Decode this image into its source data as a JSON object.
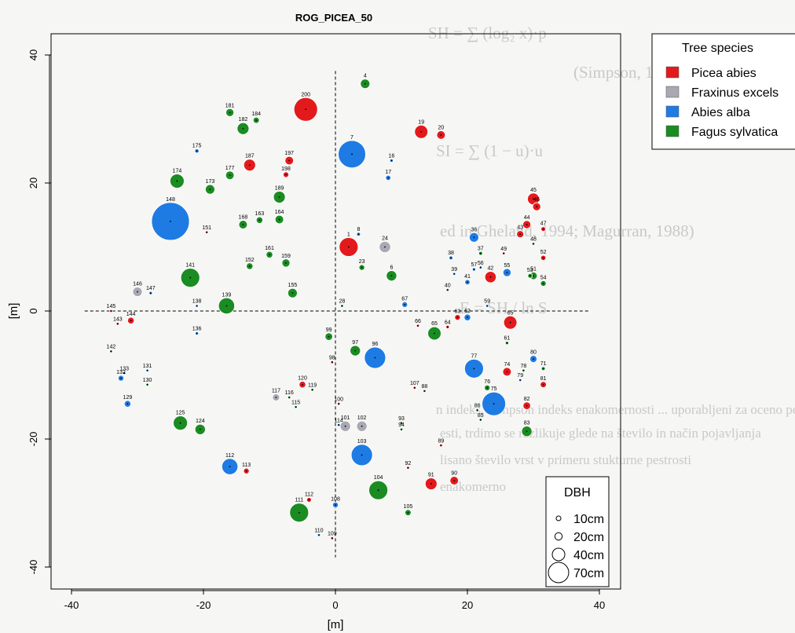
{
  "background_text": [
    "SH = ∑ (log₂ x)·p",
    "(Simpson, 1949)",
    "SI = ∑ (1 − u)·u",
    "ed in Gheland, 1994; Magurran, 1988)",
    "E = SH / ln S",
    "n indeks, Simpson indeks enakomernosti ... uporabljeni za oceno pestrosti",
    "esti, trdimo se razlikuje glede na število in način pojavljanja",
    "lisano število vrst v primeru stukturne pestrosti",
    "enakomerno"
  ],
  "chart_data": {
    "type": "scatter",
    "title": "ROG_PICEA_50",
    "xlabel": "[m]",
    "ylabel": "[m]",
    "xlim": [
      -40,
      44
    ],
    "ylim": [
      -43,
      43
    ],
    "xticks": [
      -40,
      -20,
      0,
      20,
      40
    ],
    "yticks": [
      -40,
      -20,
      0,
      20,
      40
    ],
    "grid": false,
    "reference_lines": "dashed axes at x=0 and y=0",
    "legend_position": "top-right",
    "legend_title": "Tree species",
    "species": [
      {
        "name": "Picea abies",
        "color": "#e31a1c"
      },
      {
        "name": "Fraxinus excels",
        "color": "#a9a9b3"
      },
      {
        "name": "Abies alba",
        "color": "#1e7be3"
      },
      {
        "name": "Fagus sylvatica",
        "color": "#1a8c22"
      }
    ],
    "size_legend": {
      "title": "DBH",
      "entries": [
        10,
        20,
        40,
        70
      ],
      "unit": "cm",
      "labels": [
        "10cm",
        "20cm",
        "40cm",
        "70cm"
      ]
    },
    "trees": [
      {
        "id": "4",
        "x": 4.5,
        "y": 35.5,
        "sp": 3,
        "dbh": 20
      },
      {
        "id": "200",
        "x": -4.5,
        "y": 31.5,
        "sp": 0,
        "dbh": 50
      },
      {
        "id": "181",
        "x": -16,
        "y": 31,
        "sp": 3,
        "dbh": 17
      },
      {
        "id": "184",
        "x": -12,
        "y": 29.8,
        "sp": 3,
        "dbh": 13
      },
      {
        "id": "182",
        "x": -14,
        "y": 28.5,
        "sp": 3,
        "dbh": 25
      },
      {
        "id": "19",
        "x": 13,
        "y": 28,
        "sp": 0,
        "dbh": 28
      },
      {
        "id": "20",
        "x": 16,
        "y": 27.5,
        "sp": 0,
        "dbh": 18
      },
      {
        "id": "175",
        "x": -21,
        "y": 25,
        "sp": 2,
        "dbh": 9
      },
      {
        "id": "7",
        "x": 2.5,
        "y": 24.5,
        "sp": 2,
        "dbh": 58
      },
      {
        "id": "16",
        "x": 8.5,
        "y": 23.5,
        "sp": 2,
        "dbh": 7
      },
      {
        "id": "187",
        "x": -13,
        "y": 22.8,
        "sp": 0,
        "dbh": 25
      },
      {
        "id": "197",
        "x": -7,
        "y": 23.5,
        "sp": 0,
        "dbh": 18
      },
      {
        "id": "198",
        "x": -7.5,
        "y": 21.3,
        "sp": 0,
        "dbh": 12
      },
      {
        "id": "177",
        "x": -16,
        "y": 21.2,
        "sp": 3,
        "dbh": 18
      },
      {
        "id": "17",
        "x": 8,
        "y": 20.8,
        "sp": 2,
        "dbh": 11
      },
      {
        "id": "174",
        "x": -24,
        "y": 20.3,
        "sp": 3,
        "dbh": 30
      },
      {
        "id": "173",
        "x": -19,
        "y": 19,
        "sp": 3,
        "dbh": 20
      },
      {
        "id": "189",
        "x": -8.5,
        "y": 17.8,
        "sp": 3,
        "dbh": 25
      },
      {
        "id": "45",
        "x": 30,
        "y": 17.5,
        "sp": 0,
        "dbh": 25
      },
      {
        "id": "46",
        "x": 30.5,
        "y": 16.3,
        "sp": 0,
        "dbh": 17
      },
      {
        "id": "148",
        "x": -25,
        "y": 14,
        "sp": 2,
        "dbh": 80
      },
      {
        "id": "168",
        "x": -14,
        "y": 13.5,
        "sp": 3,
        "dbh": 18
      },
      {
        "id": "163",
        "x": -11.5,
        "y": 14.2,
        "sp": 3,
        "dbh": 14
      },
      {
        "id": "164",
        "x": -8.5,
        "y": 14.3,
        "sp": 3,
        "dbh": 18
      },
      {
        "id": "44",
        "x": 29,
        "y": 13.5,
        "sp": 0,
        "dbh": 17
      },
      {
        "id": "47",
        "x": 31.5,
        "y": 12.8,
        "sp": 0,
        "dbh": 10
      },
      {
        "id": "151",
        "x": -19.5,
        "y": 12.3,
        "sp": 0,
        "dbh": 6
      },
      {
        "id": "8",
        "x": 3.5,
        "y": 12,
        "sp": 2,
        "dbh": 8
      },
      {
        "id": "43",
        "x": 28,
        "y": 12,
        "sp": 0,
        "dbh": 15
      },
      {
        "id": "36",
        "x": 21,
        "y": 11.5,
        "sp": 2,
        "dbh": 20
      },
      {
        "id": "48",
        "x": 30,
        "y": 10.5,
        "sp": 3,
        "dbh": 6
      },
      {
        "id": "1",
        "x": 2,
        "y": 10,
        "sp": 0,
        "dbh": 40
      },
      {
        "id": "24",
        "x": 7.5,
        "y": 10,
        "sp": 1,
        "dbh": 24
      },
      {
        "id": "37",
        "x": 22,
        "y": 9,
        "sp": 3,
        "dbh": 8
      },
      {
        "id": "161",
        "x": -10,
        "y": 8.8,
        "sp": 3,
        "dbh": 14
      },
      {
        "id": "49",
        "x": 25.5,
        "y": 9,
        "sp": 0,
        "dbh": 6
      },
      {
        "id": "38",
        "x": 17.5,
        "y": 8.3,
        "sp": 2,
        "dbh": 8
      },
      {
        "id": "52",
        "x": 31.5,
        "y": 8.3,
        "sp": 0,
        "dbh": 11
      },
      {
        "id": "152",
        "x": -13,
        "y": 7,
        "sp": 3,
        "dbh": 14
      },
      {
        "id": "159",
        "x": -7.5,
        "y": 7.5,
        "sp": 3,
        "dbh": 17
      },
      {
        "id": "23",
        "x": 4,
        "y": 6.8,
        "sp": 3,
        "dbh": 12
      },
      {
        "id": "57",
        "x": 21,
        "y": 6.5,
        "sp": 2,
        "dbh": 7
      },
      {
        "id": "56",
        "x": 22,
        "y": 6.8,
        "sp": 2,
        "dbh": 6
      },
      {
        "id": "55",
        "x": 26,
        "y": 6,
        "sp": 2,
        "dbh": 17
      },
      {
        "id": "39",
        "x": 18,
        "y": 5.8,
        "sp": 2,
        "dbh": 6
      },
      {
        "id": "6",
        "x": 8.5,
        "y": 5.5,
        "sp": 3,
        "dbh": 22
      },
      {
        "id": "51",
        "x": 30,
        "y": 5.5,
        "sp": 3,
        "dbh": 16
      },
      {
        "id": "53",
        "x": 29.5,
        "y": 5.5,
        "sp": 3,
        "dbh": 10
      },
      {
        "id": "42",
        "x": 23.5,
        "y": 5.3,
        "sp": 0,
        "dbh": 24
      },
      {
        "id": "41",
        "x": 20,
        "y": 4.5,
        "sp": 2,
        "dbh": 11
      },
      {
        "id": "141",
        "x": -22,
        "y": 5.2,
        "sp": 3,
        "dbh": 40
      },
      {
        "id": "54",
        "x": 31.5,
        "y": 4.3,
        "sp": 3,
        "dbh": 12
      },
      {
        "id": "40",
        "x": 17,
        "y": 3.3,
        "sp": 3,
        "dbh": 6
      },
      {
        "id": "146",
        "x": -30,
        "y": 3,
        "sp": 1,
        "dbh": 20
      },
      {
        "id": "155",
        "x": -6.5,
        "y": 2.8,
        "sp": 3,
        "dbh": 20
      },
      {
        "id": "147",
        "x": -28,
        "y": 2.8,
        "sp": 2,
        "dbh": 7
      },
      {
        "id": "67",
        "x": 10.5,
        "y": 1,
        "sp": 2,
        "dbh": 12
      },
      {
        "id": "139",
        "x": -16.5,
        "y": 0.8,
        "sp": 3,
        "dbh": 34
      },
      {
        "id": "28",
        "x": 1,
        "y": 0.8,
        "sp": 3,
        "dbh": 6
      },
      {
        "id": "59",
        "x": 23,
        "y": 0.8,
        "sp": 2,
        "dbh": 6
      },
      {
        "id": "138",
        "x": -21,
        "y": 0.8,
        "sp": 2,
        "dbh": 6
      },
      {
        "id": "145",
        "x": -34,
        "y": 0,
        "sp": 0,
        "dbh": 6
      },
      {
        "id": "62",
        "x": 20,
        "y": -1,
        "sp": 2,
        "dbh": 14
      },
      {
        "id": "63",
        "x": 18.5,
        "y": -1,
        "sp": 0,
        "dbh": 12
      },
      {
        "id": "144",
        "x": -31,
        "y": -1.5,
        "sp": 0,
        "dbh": 14
      },
      {
        "id": "143",
        "x": -33,
        "y": -2,
        "sp": 0,
        "dbh": 6
      },
      {
        "id": "66",
        "x": 12.5,
        "y": -2.3,
        "sp": 0,
        "dbh": 6
      },
      {
        "id": "64",
        "x": 17,
        "y": -2.5,
        "sp": 0,
        "dbh": 7
      },
      {
        "id": "65",
        "x": 26.5,
        "y": -1.8,
        "sp": 0,
        "dbh": 28
      },
      {
        "id": "136",
        "x": -21,
        "y": -3.5,
        "sp": 2,
        "dbh": 7
      },
      {
        "id": "65b",
        "x": 15,
        "y": -3.5,
        "sp": 3,
        "dbh": 28
      },
      {
        "id": "99",
        "x": -1,
        "y": -4,
        "sp": 3,
        "dbh": 16
      },
      {
        "id": "61",
        "x": 26,
        "y": -5,
        "sp": 3,
        "dbh": 7
      },
      {
        "id": "97",
        "x": 3,
        "y": -6.2,
        "sp": 3,
        "dbh": 22
      },
      {
        "id": "142",
        "x": -34,
        "y": -6.3,
        "sp": 3,
        "dbh": 6
      },
      {
        "id": "96",
        "x": 6,
        "y": -7.3,
        "sp": 2,
        "dbh": 45
      },
      {
        "id": "80",
        "x": 30,
        "y": -7.5,
        "sp": 2,
        "dbh": 15
      },
      {
        "id": "98",
        "x": -0.5,
        "y": -8,
        "sp": 0,
        "dbh": 6
      },
      {
        "id": "71",
        "x": 31.5,
        "y": -9,
        "sp": 3,
        "dbh": 8
      },
      {
        "id": "77",
        "x": 21,
        "y": -9,
        "sp": 2,
        "dbh": 40
      },
      {
        "id": "78",
        "x": 28.5,
        "y": -9.3,
        "sp": 3,
        "dbh": 6
      },
      {
        "id": "74",
        "x": 26,
        "y": -9.5,
        "sp": 0,
        "dbh": 18
      },
      {
        "id": "131",
        "x": -28.5,
        "y": -9.3,
        "sp": 2,
        "dbh": 6
      },
      {
        "id": "133",
        "x": -32,
        "y": -9.7,
        "sp": 2,
        "dbh": 6
      },
      {
        "id": "132",
        "x": -32.5,
        "y": -10.5,
        "sp": 2,
        "dbh": 12
      },
      {
        "id": "79",
        "x": 28,
        "y": -10.8,
        "sp": 2,
        "dbh": 6
      },
      {
        "id": "130",
        "x": -28.5,
        "y": -11.5,
        "sp": 3,
        "dbh": 6
      },
      {
        "id": "81",
        "x": 31.5,
        "y": -11.5,
        "sp": 0,
        "dbh": 13
      },
      {
        "id": "120",
        "x": -5,
        "y": -11.5,
        "sp": 0,
        "dbh": 14
      },
      {
        "id": "119",
        "x": -3.5,
        "y": -12.3,
        "sp": 3,
        "dbh": 6
      },
      {
        "id": "107",
        "x": 12,
        "y": -12,
        "sp": 0,
        "dbh": 6
      },
      {
        "id": "88",
        "x": 13.5,
        "y": -12.5,
        "sp": 3,
        "dbh": 6
      },
      {
        "id": "76",
        "x": 23,
        "y": -12,
        "sp": 3,
        "dbh": 12
      },
      {
        "id": "117",
        "x": -9,
        "y": -13.5,
        "sp": 1,
        "dbh": 15
      },
      {
        "id": "116",
        "x": -7,
        "y": -13.5,
        "sp": 3,
        "dbh": 6
      },
      {
        "id": "115",
        "x": -6,
        "y": -15,
        "sp": 3,
        "dbh": 6
      },
      {
        "id": "75",
        "x": 24,
        "y": -14.5,
        "sp": 2,
        "dbh": 50
      },
      {
        "id": "82",
        "x": 29,
        "y": -14.8,
        "sp": 0,
        "dbh": 16
      },
      {
        "id": "129",
        "x": -31.5,
        "y": -14.5,
        "sp": 2,
        "dbh": 14
      },
      {
        "id": "100",
        "x": 0.5,
        "y": -14.5,
        "sp": 0,
        "dbh": 6
      },
      {
        "id": "86",
        "x": 21.5,
        "y": -15.5,
        "sp": 3,
        "dbh": 6
      },
      {
        "id": "85",
        "x": 22,
        "y": -17,
        "sp": 3,
        "dbh": 6
      },
      {
        "id": "93",
        "x": 10,
        "y": -17.5,
        "sp": 3,
        "dbh": 6
      },
      {
        "id": "125",
        "x": -23.5,
        "y": -17.5,
        "sp": 3,
        "dbh": 30
      },
      {
        "id": "114",
        "x": 0.5,
        "y": -17.8,
        "sp": 2,
        "dbh": 6
      },
      {
        "id": "101",
        "x": 1.5,
        "y": -18,
        "sp": 1,
        "dbh": 22
      },
      {
        "id": "102",
        "x": 4,
        "y": -18,
        "sp": 1,
        "dbh": 22
      },
      {
        "id": "124",
        "x": -20.5,
        "y": -18.5,
        "sp": 3,
        "dbh": 22
      },
      {
        "id": "94",
        "x": 10,
        "y": -18.5,
        "sp": 3,
        "dbh": 6
      },
      {
        "id": "83",
        "x": 29,
        "y": -18.8,
        "sp": 3,
        "dbh": 22
      },
      {
        "id": "89",
        "x": 16,
        "y": -21,
        "sp": 0,
        "dbh": 6
      },
      {
        "id": "103",
        "x": 4,
        "y": -22.5,
        "sp": 2,
        "dbh": 45
      },
      {
        "id": "92",
        "x": 11,
        "y": -24.5,
        "sp": 0,
        "dbh": 6
      },
      {
        "id": "112a",
        "x": -16,
        "y": -24.3,
        "sp": 2,
        "dbh": 34
      },
      {
        "id": "113",
        "x": -13.5,
        "y": -25,
        "sp": 0,
        "dbh": 12
      },
      {
        "id": "91",
        "x": 14.5,
        "y": -27,
        "sp": 0,
        "dbh": 25
      },
      {
        "id": "90",
        "x": 18,
        "y": -26.5,
        "sp": 0,
        "dbh": 18
      },
      {
        "id": "104",
        "x": 6.5,
        "y": -28,
        "sp": 3,
        "dbh": 40
      },
      {
        "id": "112",
        "x": -4,
        "y": -29.5,
        "sp": 0,
        "dbh": 10
      },
      {
        "id": "108",
        "x": 0,
        "y": -30.3,
        "sp": 2,
        "dbh": 12
      },
      {
        "id": "111",
        "x": -5.5,
        "y": -31.5,
        "sp": 3,
        "dbh": 40
      },
      {
        "id": "105",
        "x": 11,
        "y": -31.5,
        "sp": 3,
        "dbh": 13
      },
      {
        "id": "110",
        "x": -2.5,
        "y": -35,
        "sp": 2,
        "dbh": 6
      },
      {
        "id": "109",
        "x": -0.5,
        "y": -35.5,
        "sp": 0,
        "dbh": 6
      }
    ]
  }
}
